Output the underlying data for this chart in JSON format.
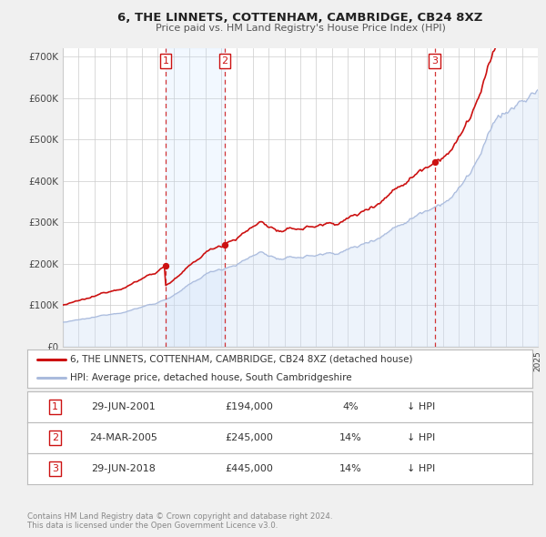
{
  "title": "6, THE LINNETS, COTTENHAM, CAMBRIDGE, CB24 8XZ",
  "subtitle": "Price paid vs. HM Land Registry's House Price Index (HPI)",
  "background_color": "#f0f0f0",
  "plot_bg_color": "#ffffff",
  "grid_color": "#cccccc",
  "hpi_color": "#aabbdd",
  "hpi_fill_color": "#ccddf5",
  "property_color": "#cc1111",
  "ylim": [
    0,
    720000
  ],
  "yticks": [
    0,
    100000,
    200000,
    300000,
    400000,
    500000,
    600000,
    700000
  ],
  "ytick_labels": [
    "£0",
    "£100K",
    "£200K",
    "£300K",
    "£400K",
    "£500K",
    "£600K",
    "£700K"
  ],
  "xstart": 1995,
  "xend": 2025,
  "transactions": [
    {
      "date_num": 2001.49,
      "price": 194000,
      "label": "1"
    },
    {
      "date_num": 2005.23,
      "price": 245000,
      "label": "2"
    },
    {
      "date_num": 2018.49,
      "price": 445000,
      "label": "3"
    }
  ],
  "legend_line1": "6, THE LINNETS, COTTENHAM, CAMBRIDGE, CB24 8XZ (detached house)",
  "legend_line2": "HPI: Average price, detached house, South Cambridgeshire",
  "table_rows": [
    [
      "1",
      "29-JUN-2001",
      "£194,000",
      "4%",
      "↓ HPI"
    ],
    [
      "2",
      "24-MAR-2005",
      "£245,000",
      "14%",
      "↓ HPI"
    ],
    [
      "3",
      "29-JUN-2018",
      "£445,000",
      "14%",
      "↓ HPI"
    ]
  ],
  "footnote1": "Contains HM Land Registry data © Crown copyright and database right 2024.",
  "footnote2": "This data is licensed under the Open Government Licence v3.0."
}
